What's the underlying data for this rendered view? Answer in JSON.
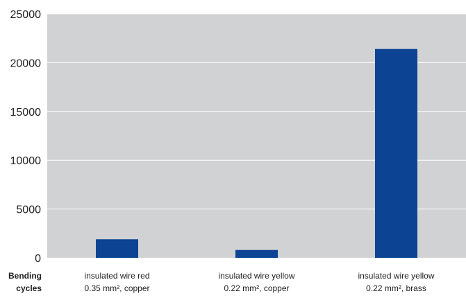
{
  "chart_data": {
    "type": "bar",
    "title": "",
    "xlabel": "Bending cycles",
    "xlabel_lines": [
      "Bending",
      "cycles"
    ],
    "ylabel": "",
    "categories": [
      "insulated wire red 0.35 mm², copper",
      "insulated wire yellow 0.22 mm², copper",
      "insulated wire yellow 0.22 mm², brass"
    ],
    "category_lines": [
      [
        "insulated wire red",
        "0.35 mm², copper"
      ],
      [
        "insulated wire yellow",
        "0.22 mm², copper"
      ],
      [
        "insulated wire yellow",
        "0.22 mm², brass"
      ]
    ],
    "values": [
      1900,
      800,
      21400
    ],
    "ylim": [
      0,
      25000
    ],
    "yticks": [
      0,
      5000,
      10000,
      15000,
      20000,
      25000
    ],
    "grid": true,
    "legend": "none"
  },
  "colors": {
    "plot_background": "#d0d2d3",
    "bar": "#0c4393",
    "gridline": "#ffffff",
    "axis_text": "#222222"
  }
}
